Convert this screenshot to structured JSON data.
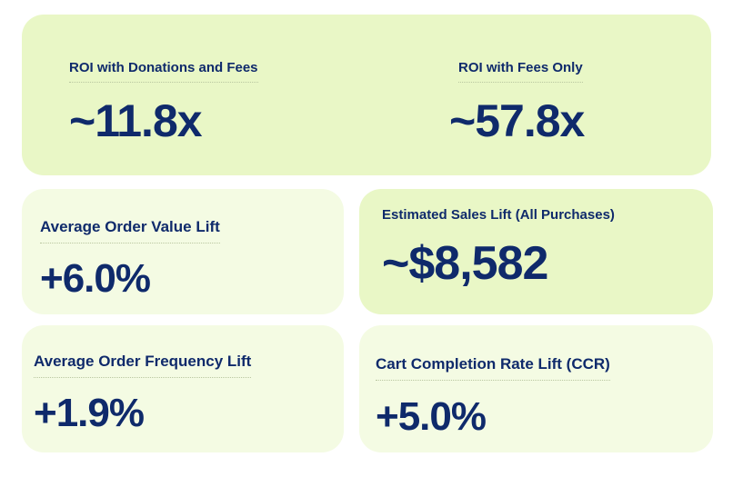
{
  "roi": {
    "donations_fees_label": "ROI with Donations and Fees",
    "donations_fees_value": "~11.8x",
    "fees_only_label": "ROI with Fees Only",
    "fees_only_value": "~57.8x"
  },
  "average_order_value": {
    "label": "Average Order Value Lift",
    "value": "+6.0%"
  },
  "estimated_sales": {
    "label": "Estimated Sales Lift (All Purchases)",
    "value": "~$8,582"
  },
  "average_order_frequency": {
    "label": "Average Order Frequency Lift",
    "value": "+1.9%"
  },
  "cart_completion": {
    "label": "Cart Completion Rate Lift (CCR)",
    "value": "+5.0%"
  },
  "colors": {
    "text": "#0f2a6b",
    "card_lime": "#e9f7c6",
    "card_pale": "#f4fbe3"
  }
}
